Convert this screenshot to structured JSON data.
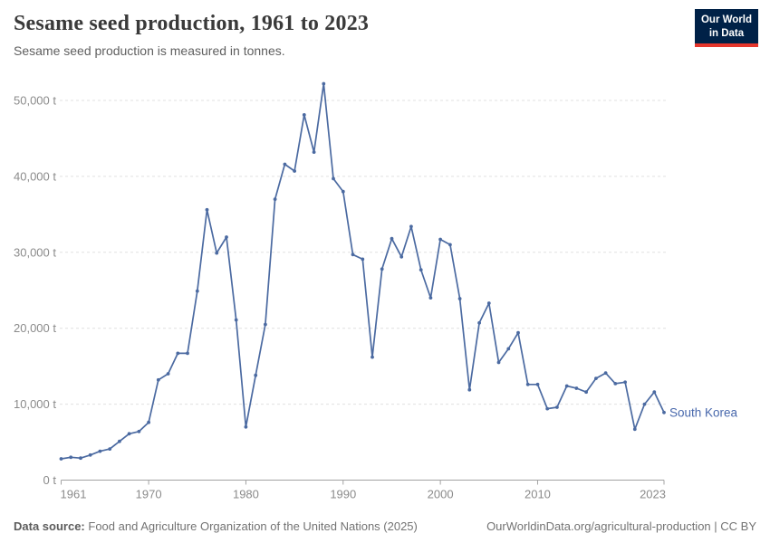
{
  "header": {
    "title": "Sesame seed production, 1961 to 2023",
    "subtitle": "Sesame seed production is measured in tonnes.",
    "logo": {
      "line1": "Our World",
      "line2": "in Data",
      "bg": "#002147",
      "accent": "#e5362c"
    }
  },
  "chart_data": {
    "type": "line",
    "title": "Sesame seed production, 1961 to 2023",
    "unit": "tonnes",
    "x": [
      1961,
      1962,
      1963,
      1964,
      1965,
      1966,
      1967,
      1968,
      1969,
      1970,
      1971,
      1972,
      1973,
      1974,
      1975,
      1976,
      1977,
      1978,
      1979,
      1980,
      1981,
      1982,
      1983,
      1984,
      1985,
      1986,
      1987,
      1988,
      1989,
      1990,
      1991,
      1992,
      1993,
      1994,
      1995,
      1996,
      1997,
      1998,
      1999,
      2000,
      2001,
      2002,
      2003,
      2004,
      2005,
      2006,
      2007,
      2008,
      2009,
      2010,
      2011,
      2012,
      2013,
      2014,
      2015,
      2016,
      2017,
      2018,
      2019,
      2020,
      2021,
      2022,
      2023
    ],
    "series": [
      {
        "name": "South Korea",
        "color": "#4b6aa1",
        "values": [
          2800,
          3000,
          2900,
          3300,
          3800,
          4100,
          5100,
          6100,
          6400,
          7600,
          13200,
          14000,
          16700,
          16700,
          24900,
          35600,
          29900,
          32000,
          21100,
          7000,
          13800,
          20500,
          37000,
          41600,
          40700,
          48100,
          43200,
          52200,
          39700,
          38000,
          29700,
          29100,
          16200,
          27800,
          31800,
          29400,
          33400,
          27700,
          24000,
          31700,
          31000,
          23900,
          11900,
          20700,
          23300,
          15500,
          17300,
          19400,
          12600,
          12600,
          9400,
          9600,
          12400,
          12100,
          11600,
          13400,
          14100,
          12700,
          12900,
          6700,
          10000,
          11600,
          8900
        ]
      }
    ],
    "xlabel": "",
    "ylabel": "",
    "ylim": [
      0,
      52500
    ],
    "yticks": [
      0,
      10000,
      20000,
      30000,
      40000,
      50000
    ],
    "ytick_labels": [
      "0 t",
      "10,000 t",
      "20,000 t",
      "30,000 t",
      "40,000 t",
      "50,000 t"
    ],
    "xticks": [
      1961,
      1970,
      1980,
      1990,
      2000,
      2010,
      2023
    ],
    "grid": "horizontal-dashed",
    "legend": "end-label",
    "end_label": "South Korea",
    "colors": {
      "line": "#4b6aa1",
      "end_label": "#4868ac",
      "gridline": "#e0e0e0",
      "axis": "#a3a3a3",
      "tick_text": "#8b8b8b"
    }
  },
  "footer": {
    "source_label": "Data source:",
    "source_text": "Food and Agriculture Organization of the United Nations (2025)",
    "credit": "OurWorldinData.org/agricultural-production | CC BY"
  }
}
